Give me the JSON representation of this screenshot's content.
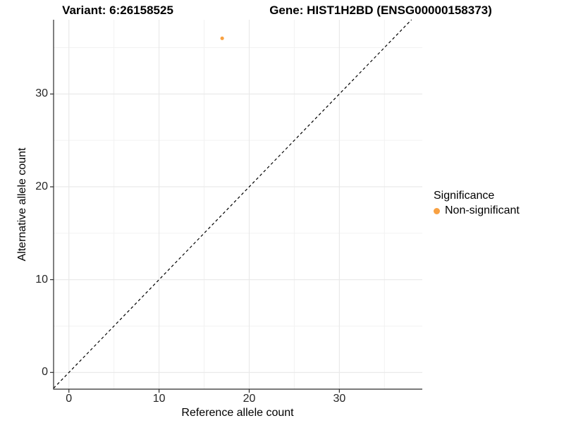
{
  "titles": {
    "variant": "Variant: 6:26158525",
    "gene": "Gene: HIST1H2BD (ENSG00000158373)"
  },
  "legend": {
    "title": "Significance",
    "items": [
      {
        "label": "Non-significant",
        "color": "#F8A142"
      }
    ]
  },
  "chart_data": {
    "type": "scatter",
    "title": "Variant: 6:26158525  |  Gene: HIST1H2BD (ENSG00000158373)",
    "xlabel": "Reference allele count",
    "ylabel": "Alternative allele count",
    "x_ticks": [
      0,
      10,
      20,
      30
    ],
    "y_ticks": [
      0,
      10,
      20,
      30
    ],
    "x_minor_ticks": [
      5,
      15,
      25,
      35
    ],
    "y_minor_ticks": [
      5,
      15,
      25,
      35
    ],
    "xlim": [
      -1.7,
      39.2
    ],
    "ylim": [
      -1.8,
      38.0
    ],
    "grid": true,
    "legend_position": "right",
    "reference_line": {
      "type": "identity",
      "style": "dashed",
      "color": "#000000"
    },
    "series": [
      {
        "name": "Non-significant",
        "color": "#F8A142",
        "points": [
          {
            "x": 17,
            "y": 36
          }
        ]
      }
    ],
    "colors": {
      "grid_major": "#E8E8E8",
      "grid_minor": "#F2F2F2",
      "axis_line": "#2b2b2b",
      "tick_mark": "#2b2b2b"
    }
  }
}
